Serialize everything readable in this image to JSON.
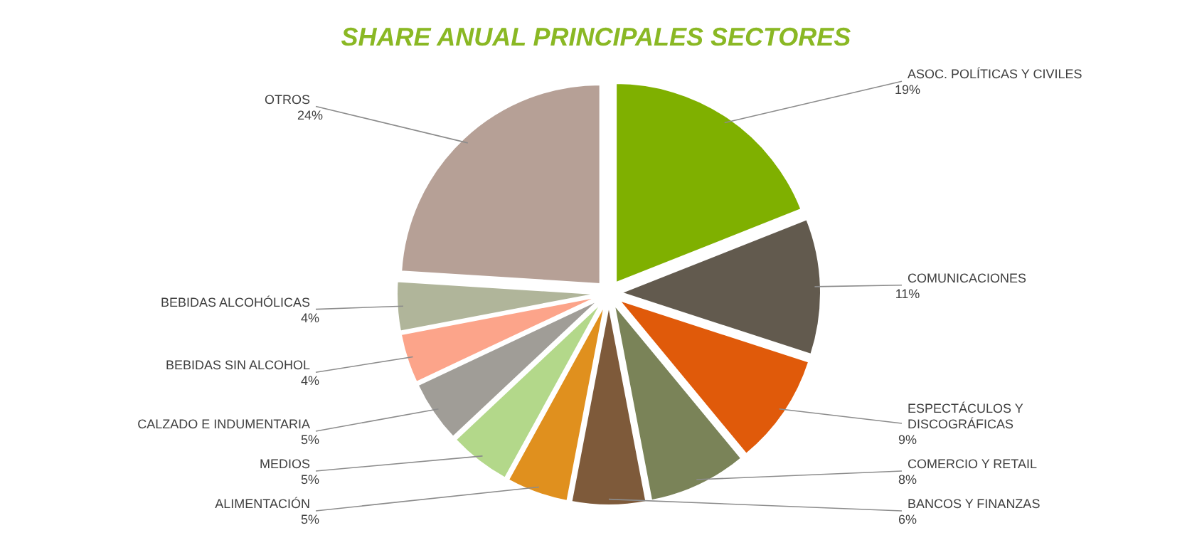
{
  "chart_data": {
    "type": "pie",
    "title": "SHARE ANUAL PRINCIPALES SECTORES",
    "categories": [
      "ASOC. POLÍTICAS Y CIVILES",
      "COMUNICACIONES",
      "ESPECTÁCULOS Y DISCOGRÁFICAS",
      "COMERCIO Y RETAIL",
      "BANCOS Y FINANZAS",
      "ALIMENTACIÓN",
      "MEDIOS",
      "CALZADO E INDUMENTARIA",
      "BEBIDAS SIN ALCOHOL",
      "BEBIDAS ALCOHÓLICAS",
      "OTROS"
    ],
    "values": [
      19,
      11,
      9,
      8,
      6,
      5,
      5,
      5,
      4,
      4,
      24
    ],
    "colors": [
      "#7fb000",
      "#625a4e",
      "#e05a0a",
      "#7a8358",
      "#7e5a3a",
      "#e0901e",
      "#b3d88a",
      "#a09d97",
      "#fca48a",
      "#b0b59a",
      "#b6a096"
    ],
    "value_labels": [
      "19%",
      "11%",
      "9%",
      "8%",
      "6%",
      "5%",
      "5%",
      "5%",
      "4%",
      "4%",
      "24%"
    ]
  }
}
